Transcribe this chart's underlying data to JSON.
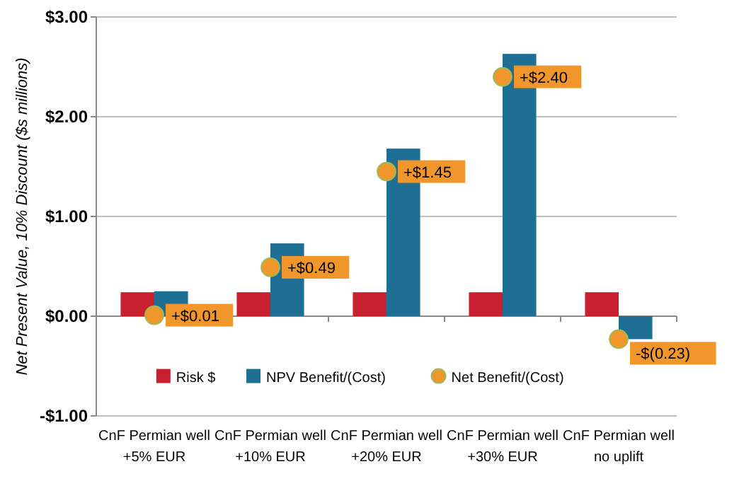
{
  "chart_data": {
    "type": "bar",
    "ylabel": "Net Present Value, 10% Discount ($s millions)",
    "categories": [
      "CnF Permian well\n+5% EUR",
      "CnF Permian well\n+10% EUR",
      "CnF Permian well\n+20% EUR",
      "CnF Permian well\n+30% EUR",
      "CnF Permian well\nno uplift"
    ],
    "series": [
      {
        "name": "Risk $",
        "color": "#c8202f",
        "values": [
          0.24,
          0.24,
          0.24,
          0.24,
          0.24
        ]
      },
      {
        "name": "NPV Benefit/(Cost)",
        "color": "#1f6e93",
        "values": [
          0.25,
          0.73,
          1.68,
          2.63,
          -0.23
        ]
      },
      {
        "name": "Net Benefit/(Cost)",
        "type": "scatter",
        "color": "#f0962a",
        "x": [
          "CnF Permian well\n+5% EUR",
          "CnF Permian well\n+10% EUR",
          "CnF Permian well\n+20% EUR",
          "CnF Permian well\n+30% EUR",
          "CnF Permian well\nno uplift"
        ],
        "values": [
          0.01,
          0.49,
          1.45,
          2.4,
          -0.23
        ],
        "value_labels": [
          "+$0.01",
          "+$0.49",
          "+$1.45",
          "+$2.40",
          "-$(0.23)"
        ]
      }
    ],
    "ylim": [
      -1,
      3
    ],
    "yticks": [
      {
        "value": -1,
        "label": "-$1.00"
      },
      {
        "value": 0,
        "label": "$0.00"
      },
      {
        "value": 1,
        "label": "$1.00"
      },
      {
        "value": 2,
        "label": "$2.00"
      },
      {
        "value": 3,
        "label": "$3.00"
      }
    ],
    "grid": "y",
    "legend": "bottom",
    "marker": "circle"
  }
}
